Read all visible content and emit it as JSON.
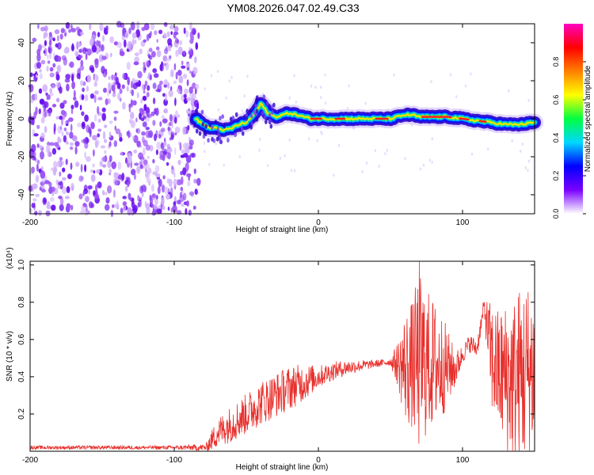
{
  "title": "YM08.2026.047.02.49.C33",
  "chart_data": [
    {
      "type": "heatmap",
      "name": "spectrogram",
      "xlabel": "Height of straight line (km)",
      "ylabel": "Frequency (Hz)",
      "xlim": [
        -200,
        150
      ],
      "ylim": [
        -50,
        50
      ],
      "xticks": [
        -200,
        -100,
        0,
        100
      ],
      "xtick_labels": [
        "-200",
        "-100",
        "0",
        "100"
      ],
      "yticks": [
        -40,
        -20,
        0,
        20,
        40
      ],
      "ytick_labels": [
        "-40",
        "-20",
        "0",
        "20",
        "40"
      ],
      "noise_region": {
        "x_from": -200,
        "x_to": -83,
        "description_level": "low"
      },
      "ridge": {
        "x": [
          -85,
          -80,
          -75,
          -70,
          -65,
          -60,
          -55,
          -50,
          -45,
          -42,
          -40,
          -38,
          -35,
          -30,
          -25,
          -20,
          -15,
          -10,
          -5,
          0,
          10,
          20,
          30,
          40,
          50,
          55,
          60,
          65,
          70,
          75,
          80,
          90,
          100,
          110,
          120,
          130,
          140,
          150
        ],
        "y": [
          0,
          -3,
          -5,
          -5,
          -6,
          -5,
          -3,
          -2,
          2,
          5,
          8,
          6,
          3,
          1,
          2,
          3,
          2,
          1,
          0,
          0,
          0,
          0,
          0,
          0,
          0,
          1,
          2,
          2,
          1,
          1,
          1,
          1,
          0,
          -1,
          -2,
          -3,
          -3,
          -2
        ],
        "peak_amplitude": 1.0
      },
      "colorbar": {
        "label": "Normalized spectral amplitude",
        "range": [
          0,
          1
        ],
        "ticks": [
          0.0,
          0.2,
          0.4,
          0.6,
          0.8
        ],
        "tick_labels": [
          "0.0",
          "0.2",
          "0.4",
          "0.6",
          "0.8"
        ],
        "colors": [
          "#ffffff",
          "#7a00ff",
          "#0000ff",
          "#00d8ff",
          "#00ff40",
          "#ffff00",
          "#ff8000",
          "#ff0000",
          "#ff00c0"
        ]
      }
    },
    {
      "type": "line",
      "name": "snr",
      "xlabel": "Height of straight line (km)",
      "ylabel": "SNR (10 * v/v)",
      "multiplier": "(x10⁴)",
      "color": "#e8302c",
      "xlim": [
        -200,
        150
      ],
      "ylim": [
        0,
        1.02
      ],
      "xticks": [
        -200,
        -100,
        0,
        100
      ],
      "xtick_labels": [
        "-200",
        "-100",
        "0",
        "100"
      ],
      "yticks": [
        0.2,
        0.4,
        0.6,
        0.8,
        1.0
      ],
      "ytick_labels": [
        "0.2",
        "0.4",
        "0.6",
        "0.8",
        "1.0"
      ],
      "envelope": {
        "x": [
          -200,
          -150,
          -100,
          -78,
          -75,
          -70,
          -60,
          -50,
          -40,
          -30,
          -20,
          -10,
          0,
          10,
          20,
          30,
          40,
          50,
          55,
          60,
          65,
          70,
          75,
          80,
          85,
          90,
          95,
          100,
          105,
          110,
          115,
          120,
          125,
          130,
          135,
          140,
          145,
          150
        ],
        "base": [
          0.02,
          0.02,
          0.02,
          0.02,
          0.05,
          0.1,
          0.15,
          0.2,
          0.26,
          0.3,
          0.34,
          0.37,
          0.4,
          0.43,
          0.45,
          0.46,
          0.47,
          0.48,
          0.47,
          0.45,
          0.46,
          0.48,
          0.48,
          0.47,
          0.46,
          0.45,
          0.44,
          0.52,
          0.58,
          0.55,
          0.78,
          0.5,
          0.42,
          0.4,
          0.38,
          0.4,
          0.42,
          0.45
        ],
        "spread": [
          0.01,
          0.01,
          0.01,
          0.02,
          0.05,
          0.08,
          0.1,
          0.11,
          0.12,
          0.12,
          0.12,
          0.1,
          0.06,
          0.05,
          0.04,
          0.03,
          0.02,
          0.02,
          0.12,
          0.3,
          0.35,
          0.5,
          0.4,
          0.35,
          0.3,
          0.2,
          0.1,
          0.05,
          0.05,
          0.05,
          0.05,
          0.3,
          0.35,
          0.4,
          0.45,
          0.5,
          0.5,
          0.45
        ]
      },
      "max_value": 1.02,
      "max_at_x": 70
    }
  ]
}
